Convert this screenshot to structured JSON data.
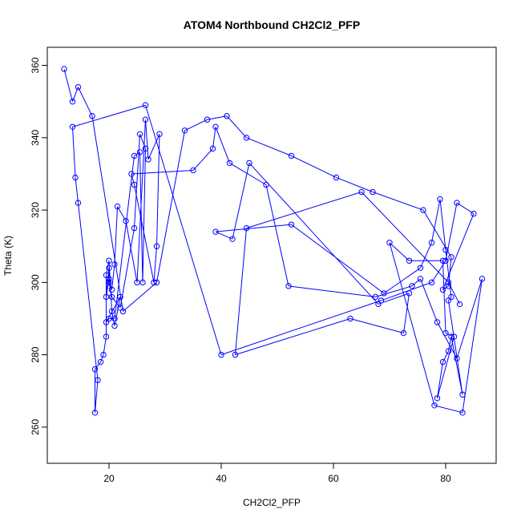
{
  "chart_data": {
    "type": "line",
    "title": "ATOM4 Northbound CH2Cl2_PFP",
    "xlabel": "CH2Cl2_PFP",
    "ylabel": "Theta (K)",
    "xlim": [
      9,
      89
    ],
    "ylim": [
      250,
      365
    ],
    "xticks": [
      20,
      40,
      60,
      80
    ],
    "yticks": [
      260,
      280,
      300,
      320,
      340,
      360
    ],
    "grid": false,
    "colors": {
      "series": "#0000ff",
      "axes": "#000000"
    },
    "series": [
      {
        "marker": "open-circle",
        "x": [
          12.0,
          13.5,
          14.5,
          17.0,
          22.5,
          28.5,
          33.5,
          37.5,
          41.0,
          44.5,
          52.5,
          60.5,
          67.0,
          76.0,
          81.0,
          80.5,
          79.5,
          85.0,
          82.0,
          80.0,
          77.5,
          68.5,
          40.0,
          26.5,
          13.5,
          14.0,
          14.5,
          18.0,
          17.5,
          17.5,
          18.5,
          19.0,
          19.5,
          19.5,
          20.0,
          20.5,
          21.0,
          22.0,
          19.5,
          20.0,
          21.0,
          24.5,
          25.5,
          26.0,
          26.5,
          25.5,
          24.5,
          22.0,
          20.5,
          20.0,
          20.0,
          19.5,
          20.0,
          20.5,
          21.0,
          21.5,
          23.0,
          25.0,
          26.5,
          27.0,
          29.0,
          28.5,
          28.0,
          24.5,
          24.0,
          35.0,
          38.5,
          39.0,
          41.5,
          48.0,
          52.0,
          67.5,
          74.0,
          75.5,
          78.5,
          82.0,
          86.5,
          83.0,
          78.0,
          70.0,
          73.5,
          79.5,
          80.0,
          81.5,
          78.5,
          79.5,
          80.5,
          81.0,
          83.0,
          80.5,
          81.0,
          80.0,
          79.0,
          77.5,
          75.5,
          69.0,
          52.5,
          39.0,
          42.0,
          45.0,
          68.0,
          73.5,
          72.5,
          63.0,
          42.5,
          44.5,
          65.0,
          80.5,
          82.5
        ],
        "y": [
          359,
          350,
          354,
          346,
          292,
          300,
          342,
          345,
          346,
          340,
          335,
          329,
          325,
          320,
          307,
          299,
          298,
          319,
          322,
          306,
          300,
          295,
          280,
          349,
          343,
          329,
          322,
          273,
          264,
          276,
          278,
          280,
          285,
          302,
          306,
          292,
          288,
          296,
          289,
          290,
          290,
          335,
          336,
          300,
          337,
          341,
          315,
          293,
          296,
          300,
          304,
          296,
          301,
          298,
          305,
          321,
          317,
          300,
          345,
          334,
          341,
          310,
          300,
          327,
          330,
          331,
          337,
          343,
          333,
          327,
          299,
          296,
          299,
          301,
          289,
          279,
          301,
          264,
          266,
          311,
          306,
          306,
          286,
          285,
          268,
          278,
          281,
          285,
          269,
          295,
          296,
          309,
          323,
          311,
          304,
          297,
          316,
          314,
          312,
          333,
          294,
          297,
          286,
          290,
          280,
          315,
          325,
          300,
          294
        ]
      }
    ]
  }
}
